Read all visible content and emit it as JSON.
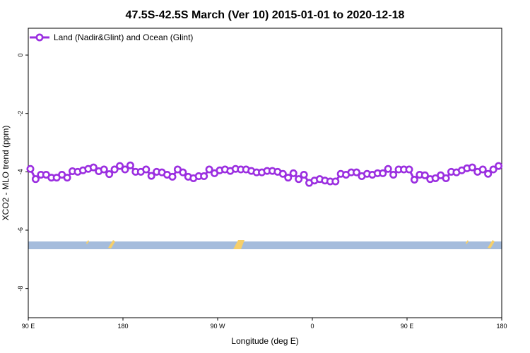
{
  "chart_data": {
    "type": "line",
    "title": "47.5S-42.5S March (Ver 10)   2015-01-01 to 2020-12-18",
    "x_label": "Longitude (deg E)",
    "y_label": "XCO2 - MLO trend (ppm)",
    "legend_position": "upper left",
    "xlim": [
      90,
      540
    ],
    "xticks": [
      {
        "value": 90,
        "label": "90 E"
      },
      180,
      {
        "value": 270,
        "label": "90 W"
      },
      {
        "value": 360,
        "label": "0"
      },
      {
        "value": 450,
        "label": "90 E"
      },
      {
        "value": 540,
        "label": "180"
      }
    ],
    "ylim": [
      -9,
      0.92
    ],
    "yticks": [
      0,
      -2,
      -4,
      -6,
      -8
    ],
    "x": [
      92,
      97,
      102,
      107,
      112,
      117,
      122,
      127,
      132,
      137,
      142,
      147,
      152,
      157,
      162,
      167,
      172,
      177,
      182,
      187,
      192,
      197,
      202,
      207,
      212,
      217,
      222,
      227,
      232,
      237,
      242,
      247,
      252,
      257,
      262,
      267,
      272,
      277,
      282,
      287,
      292,
      297,
      302,
      307,
      312,
      317,
      322,
      327,
      332,
      337,
      342,
      347,
      352,
      357,
      362,
      367,
      372,
      377,
      382,
      387,
      392,
      397,
      402,
      407,
      412,
      417,
      422,
      427,
      432,
      437,
      442,
      447,
      452,
      457,
      462,
      467,
      472,
      477,
      482,
      487,
      492,
      497,
      502,
      507,
      512,
      517,
      522,
      527,
      532,
      537
    ],
    "series": [
      {
        "name": "Land (Nadir&Glint) and Ocean (Glint)",
        "color": "#9b2fe0",
        "values": [
          -3.9,
          -4.25,
          -4.1,
          -4.1,
          -4.2,
          -4.2,
          -4.1,
          -4.2,
          -3.98,
          -4.0,
          -3.95,
          -3.9,
          -3.85,
          -3.98,
          -3.92,
          -4.08,
          -3.92,
          -3.8,
          -3.92,
          -3.78,
          -4.0,
          -4.0,
          -3.92,
          -4.14,
          -4.0,
          -4.02,
          -4.1,
          -4.17,
          -3.92,
          -4.02,
          -4.17,
          -4.22,
          -4.15,
          -4.15,
          -3.92,
          -4.05,
          -3.95,
          -3.92,
          -3.97,
          -3.9,
          -3.92,
          -3.92,
          -3.97,
          -4.02,
          -4.02,
          -3.97,
          -3.97,
          -4.0,
          -4.07,
          -4.2,
          -4.05,
          -4.25,
          -4.1,
          -4.38,
          -4.3,
          -4.25,
          -4.3,
          -4.33,
          -4.33,
          -4.07,
          -4.1,
          -4.02,
          -4.02,
          -4.15,
          -4.07,
          -4.1,
          -4.05,
          -4.05,
          -3.9,
          -4.1,
          -3.92,
          -3.92,
          -3.92,
          -4.27,
          -4.1,
          -4.12,
          -4.25,
          -4.22,
          -4.12,
          -4.22,
          -4.0,
          -4.02,
          -3.95,
          -3.88,
          -3.85,
          -4.0,
          -3.92,
          -4.07,
          -3.92,
          -3.8
        ]
      }
    ]
  }
}
